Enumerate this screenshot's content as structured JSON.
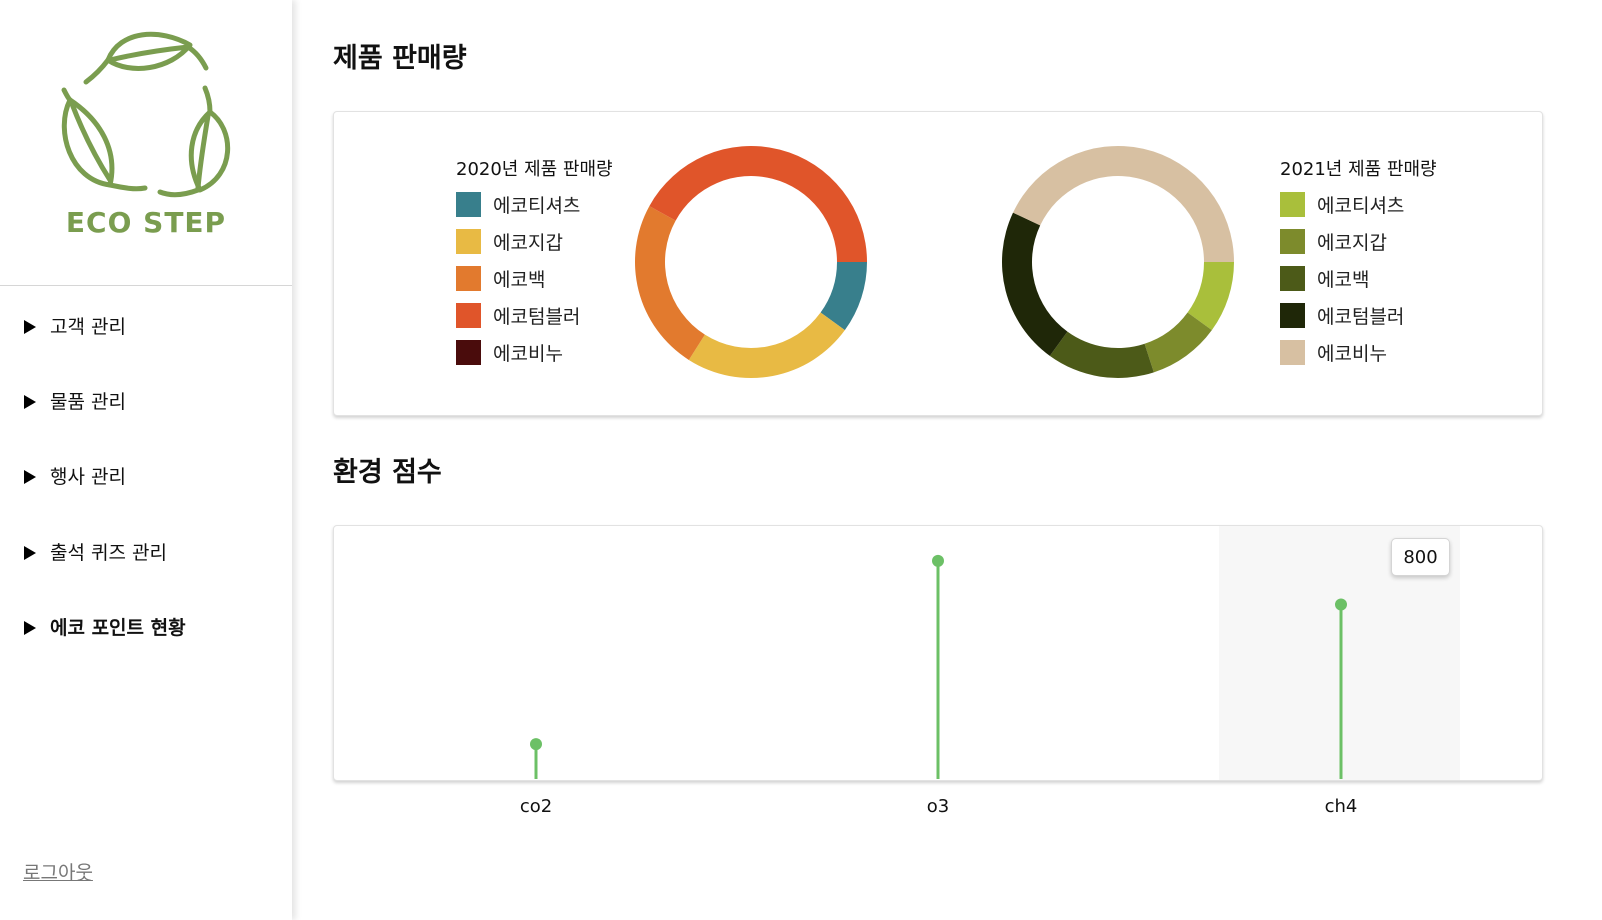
{
  "brand": {
    "name": "ECO STEP",
    "color": "#7a9d4f"
  },
  "nav": {
    "items": [
      {
        "label": "고객 관리",
        "active": false
      },
      {
        "label": "물품 관리",
        "active": false
      },
      {
        "label": "행사 관리",
        "active": false
      },
      {
        "label": "출석 퀴즈 관리",
        "active": false
      },
      {
        "label": "에코 포인트 현황",
        "active": true
      }
    ],
    "logout": "로그아웃"
  },
  "sales_section": {
    "title": "제품 판매량"
  },
  "score_section": {
    "title": "환경 점수"
  },
  "chart_data": [
    {
      "type": "pie",
      "title": "2020년 제품 판매량",
      "categories": [
        "에코티셔츠",
        "에코지갑",
        "에코백",
        "에코텀블러",
        "에코비누"
      ],
      "values": [
        10,
        24,
        24,
        42,
        0
      ],
      "colors": [
        "#387f8c",
        "#e8ba44",
        "#e27a2e",
        "#e0552a",
        "#4a0c0c"
      ]
    },
    {
      "type": "pie",
      "title": "2021년 제품 판매량",
      "categories": [
        "에코티셔츠",
        "에코지갑",
        "에코백",
        "에코텀블러",
        "에코비누"
      ],
      "values": [
        10,
        10,
        15,
        22,
        43
      ],
      "colors": [
        "#a9bf3b",
        "#7d8b2c",
        "#4c5a18",
        "#1f2708",
        "#d7c0a2"
      ]
    },
    {
      "type": "lollipop",
      "categories": [
        "co2",
        "o3",
        "ch4"
      ],
      "values": [
        160,
        1000,
        800
      ],
      "ylim": [
        0,
        1050
      ],
      "color": "#6cc066",
      "highlight": {
        "category": "ch4",
        "tooltip": "800"
      }
    }
  ]
}
